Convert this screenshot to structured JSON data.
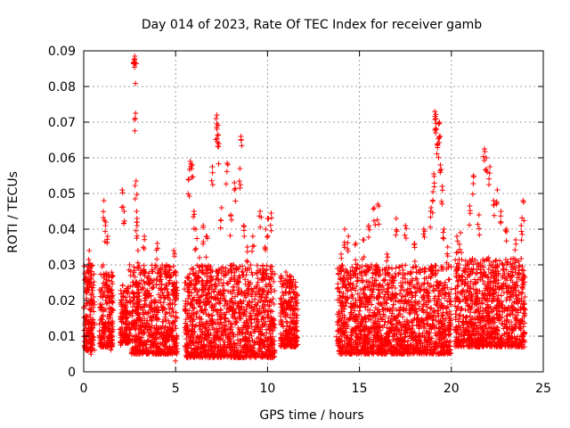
{
  "chart_data": {
    "type": "scatter",
    "title": "Day 014 of 2023, Rate Of TEC Index for receiver gamb",
    "xlabel": "GPS time / hours",
    "ylabel": "ROTI / TECUs",
    "xlim": [
      0,
      25
    ],
    "ylim": [
      0,
      0.09
    ],
    "x_ticks": [
      0,
      5,
      10,
      15,
      20,
      25
    ],
    "x_tick_labels": [
      "0",
      "5",
      "10",
      "15",
      "20",
      "25"
    ],
    "y_ticks": [
      0,
      0.01,
      0.02,
      0.03,
      0.04,
      0.05,
      0.06,
      0.07,
      0.08,
      0.09
    ],
    "y_tick_labels": [
      "0",
      "0.01",
      "0.02",
      "0.03",
      "0.04",
      "0.05",
      "0.06",
      "0.07",
      "0.08",
      "0.09"
    ],
    "grid": true,
    "marker": "+",
    "marker_color": "#ff0000",
    "series": [
      {
        "name": "ROTI",
        "points": [
          [
            0.1,
            0.012
          ],
          [
            0.15,
            0.02
          ],
          [
            0.2,
            0.025
          ],
          [
            0.25,
            0.03
          ],
          [
            0.3,
            0.034
          ],
          [
            0.35,
            0.016
          ],
          [
            0.4,
            0.009
          ],
          [
            0.45,
            0.022
          ],
          [
            0.5,
            0.018
          ],
          [
            1.0,
            0.014
          ],
          [
            1.05,
            0.03
          ],
          [
            1.1,
            0.048
          ],
          [
            1.2,
            0.042
          ],
          [
            1.3,
            0.038
          ],
          [
            1.4,
            0.02
          ],
          [
            1.5,
            0.01
          ],
          [
            1.55,
            0.027
          ],
          [
            2.0,
            0.012
          ],
          [
            2.1,
            0.051
          ],
          [
            2.2,
            0.045
          ],
          [
            2.3,
            0.02
          ],
          [
            2.5,
            0.03
          ],
          [
            2.75,
            0.0875
          ],
          [
            2.78,
            0.0885
          ],
          [
            2.8,
            0.0865
          ],
          [
            2.82,
            0.0725
          ],
          [
            2.85,
            0.0535
          ],
          [
            2.88,
            0.045
          ],
          [
            2.9,
            0.043
          ],
          [
            2.95,
            0.034
          ],
          [
            3.0,
            0.02
          ],
          [
            3.05,
            0.015
          ],
          [
            3.3,
            0.038
          ],
          [
            3.5,
            0.025
          ],
          [
            3.7,
            0.018
          ],
          [
            4.0,
            0.036
          ],
          [
            4.2,
            0.029
          ],
          [
            4.5,
            0.03
          ],
          [
            4.7,
            0.012
          ],
          [
            4.9,
            0.034
          ],
          [
            5.0,
            0.008
          ],
          [
            5.5,
            0.025
          ],
          [
            5.7,
            0.054
          ],
          [
            5.8,
            0.059
          ],
          [
            5.9,
            0.058
          ],
          [
            6.0,
            0.045
          ],
          [
            6.1,
            0.04
          ],
          [
            6.3,
            0.032
          ],
          [
            6.5,
            0.041
          ],
          [
            6.7,
            0.038
          ],
          [
            7.0,
            0.0575
          ],
          [
            7.2,
            0.071
          ],
          [
            7.25,
            0.072
          ],
          [
            7.3,
            0.0665
          ],
          [
            7.35,
            0.064
          ],
          [
            7.5,
            0.046
          ],
          [
            7.8,
            0.0585
          ],
          [
            8.0,
            0.044
          ],
          [
            8.2,
            0.053
          ],
          [
            8.5,
            0.057
          ],
          [
            8.55,
            0.066
          ],
          [
            8.7,
            0.041
          ],
          [
            8.9,
            0.035
          ],
          [
            9.2,
            0.038
          ],
          [
            9.6,
            0.045
          ],
          [
            9.9,
            0.04
          ],
          [
            10.0,
            0.043
          ],
          [
            10.2,
            0.0445
          ],
          [
            10.8,
            0.014
          ],
          [
            11.0,
            0.028
          ],
          [
            11.2,
            0.025
          ],
          [
            11.4,
            0.018
          ],
          [
            11.5,
            0.012
          ],
          [
            13.8,
            0.014
          ],
          [
            14.0,
            0.033
          ],
          [
            14.2,
            0.04
          ],
          [
            14.4,
            0.038
          ],
          [
            14.8,
            0.036
          ],
          [
            15.2,
            0.037
          ],
          [
            15.5,
            0.041
          ],
          [
            15.8,
            0.046
          ],
          [
            16.0,
            0.047
          ],
          [
            16.5,
            0.033
          ],
          [
            17.0,
            0.043
          ],
          [
            17.5,
            0.041
          ],
          [
            18.0,
            0.036
          ],
          [
            18.5,
            0.04
          ],
          [
            18.9,
            0.046
          ],
          [
            19.0,
            0.0505
          ],
          [
            19.05,
            0.0555
          ],
          [
            19.1,
            0.073
          ],
          [
            19.15,
            0.071
          ],
          [
            19.2,
            0.068
          ],
          [
            19.25,
            0.0635
          ],
          [
            19.3,
            0.0695
          ],
          [
            19.35,
            0.07
          ],
          [
            19.4,
            0.058
          ],
          [
            19.5,
            0.052
          ],
          [
            19.6,
            0.04
          ],
          [
            19.8,
            0.035
          ],
          [
            20.3,
            0.038
          ],
          [
            20.5,
            0.039
          ],
          [
            21.0,
            0.0465
          ],
          [
            21.2,
            0.055
          ],
          [
            21.5,
            0.044
          ],
          [
            21.8,
            0.0625
          ],
          [
            21.9,
            0.06
          ],
          [
            22.1,
            0.0575
          ],
          [
            22.3,
            0.048
          ],
          [
            22.5,
            0.051
          ],
          [
            22.7,
            0.045
          ],
          [
            23.0,
            0.04
          ],
          [
            23.5,
            0.037
          ],
          [
            23.8,
            0.041
          ],
          [
            23.9,
            0.048
          ],
          [
            24.0,
            0.021
          ]
        ],
        "dense_bands": [
          {
            "x": [
              0.0,
              0.6
            ],
            "y": [
              0.006,
              0.03
            ]
          },
          {
            "x": [
              0.85,
              1.6
            ],
            "y": [
              0.007,
              0.028
            ]
          },
          {
            "x": [
              2.0,
              2.55
            ],
            "y": [
              0.008,
              0.025
            ]
          },
          {
            "x": [
              2.6,
              5.1
            ],
            "y": [
              0.005,
              0.03
            ]
          },
          {
            "x": [
              5.5,
              10.4
            ],
            "y": [
              0.004,
              0.03
            ]
          },
          {
            "x": [
              10.7,
              11.65
            ],
            "y": [
              0.007,
              0.027
            ]
          },
          {
            "x": [
              13.8,
              20.0
            ],
            "y": [
              0.005,
              0.03
            ]
          },
          {
            "x": [
              20.2,
              24.0
            ],
            "y": [
              0.007,
              0.032
            ]
          }
        ]
      }
    ]
  }
}
